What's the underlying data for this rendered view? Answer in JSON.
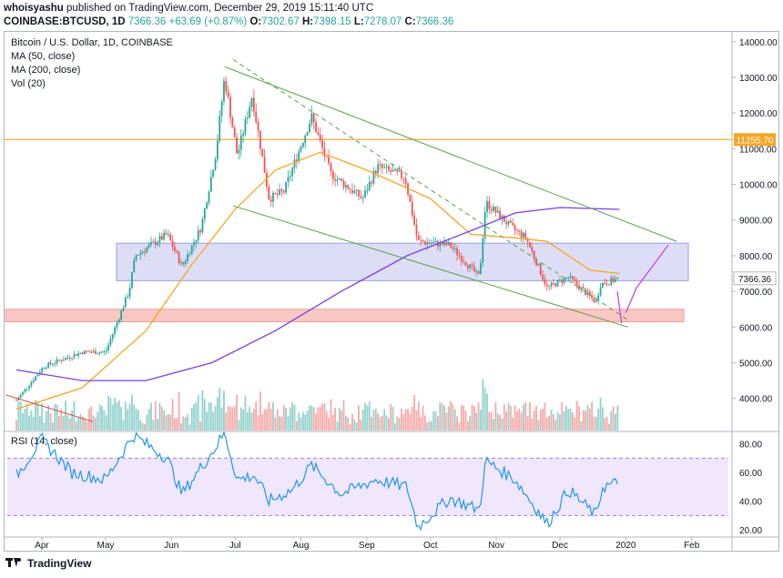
{
  "header": {
    "author": "whoisyashu",
    "published": "published on TradingView.com, December 29, 2019 15:11:40 UTC",
    "symbol": "COINBASE:BTCUSD, 1D",
    "last": "7366.36",
    "change": "+63.69 (+0.87%)",
    "o_label": "O:",
    "o": "7302.67",
    "h_label": "H:",
    "h": "7398.15",
    "l_label": "L:",
    "l": "7278.07",
    "c_label": "C:",
    "c": "7366.36"
  },
  "legend": {
    "title": "Bitcoin / U.S. Dollar, 1D, COINBASE",
    "ma50": "MA (50, close)",
    "ma200": "MA (200, close)",
    "vol": "Vol (20)"
  },
  "rsi_label": "RSI (14, close)",
  "footer": {
    "brand": "TradingView"
  },
  "colors": {
    "up": "#26a69a",
    "down": "#ef5350",
    "ma50": "#f5a623",
    "ma200": "#7b3fe4",
    "channel": "#5b9f4a",
    "rsi": "#2196f3",
    "rsi_band": "#e9ddfb",
    "resistance": "#f5a623",
    "zone_blue": "#c6c8ee",
    "zone_red": "#f8b9b5"
  },
  "chart_data": [
    {
      "type": "candlestick",
      "title": "Bitcoin / U.S. Dollar, 1D, COINBASE",
      "x_ticks": [
        "Apr",
        "May",
        "Jun",
        "Jul",
        "Aug",
        "Sep",
        "Oct",
        "Nov",
        "Dec",
        "2020",
        "Feb"
      ],
      "y_ticks": [
        "14000.00",
        "13000.00",
        "12000.00",
        "11000.00",
        "10000.00",
        "9000.00",
        "8000.00",
        "7000.00",
        "6000.00",
        "5000.00",
        "4000.00"
      ],
      "ylim": [
        3100,
        14300
      ],
      "price_label": "7366.36",
      "resistance_label": "11255.70",
      "resistance_level": 11255.7,
      "demand_zone": [
        7300,
        8350
      ],
      "support_zone": [
        6150,
        6500
      ],
      "price_path": [
        [
          "2019-03-20",
          3950
        ],
        [
          "2019-04-02",
          4900
        ],
        [
          "2019-04-20",
          5300
        ],
        [
          "2019-05-01",
          5300
        ],
        [
          "2019-05-12",
          7000
        ],
        [
          "2019-05-15",
          8000
        ],
        [
          "2019-05-30",
          8600
        ],
        [
          "2019-06-06",
          7700
        ],
        [
          "2019-06-15",
          8800
        ],
        [
          "2019-06-22",
          10900
        ],
        [
          "2019-06-26",
          13000
        ],
        [
          "2019-07-02",
          10800
        ],
        [
          "2019-07-09",
          12500
        ],
        [
          "2019-07-17",
          9600
        ],
        [
          "2019-07-24",
          9800
        ],
        [
          "2019-08-06",
          11900
        ],
        [
          "2019-08-15",
          10300
        ],
        [
          "2019-08-30",
          9600
        ],
        [
          "2019-09-06",
          10500
        ],
        [
          "2019-09-19",
          10200
        ],
        [
          "2019-09-25",
          8400
        ],
        [
          "2019-10-10",
          8300
        ],
        [
          "2019-10-24",
          7400
        ],
        [
          "2019-10-27",
          9500
        ],
        [
          "2019-11-08",
          8800
        ],
        [
          "2019-11-15",
          8500
        ],
        [
          "2019-11-25",
          7100
        ],
        [
          "2019-12-05",
          7400
        ],
        [
          "2019-12-18",
          6700
        ],
        [
          "2019-12-20",
          7200
        ],
        [
          "2019-12-29",
          7366
        ]
      ],
      "ma50": [
        [
          "2019-03-20",
          3700
        ],
        [
          "2019-04-20",
          4300
        ],
        [
          "2019-05-20",
          5900
        ],
        [
          "2019-06-10",
          7700
        ],
        [
          "2019-07-01",
          9300
        ],
        [
          "2019-07-20",
          10400
        ],
        [
          "2019-08-10",
          10900
        ],
        [
          "2019-09-01",
          10400
        ],
        [
          "2019-10-01",
          9600
        ],
        [
          "2019-10-20",
          8600
        ],
        [
          "2019-11-10",
          8500
        ],
        [
          "2019-11-25",
          8400
        ],
        [
          "2019-12-15",
          7600
        ],
        [
          "2019-12-29",
          7500
        ]
      ],
      "ma200": [
        [
          "2019-03-20",
          4800
        ],
        [
          "2019-04-20",
          4500
        ],
        [
          "2019-05-20",
          4500
        ],
        [
          "2019-06-20",
          5000
        ],
        [
          "2019-07-20",
          5900
        ],
        [
          "2019-08-20",
          7000
        ],
        [
          "2019-09-20",
          8000
        ],
        [
          "2019-10-20",
          8700
        ],
        [
          "2019-11-10",
          9200
        ],
        [
          "2019-12-01",
          9350
        ],
        [
          "2019-12-29",
          9300
        ]
      ]
    },
    {
      "type": "line",
      "title": "RSI (14, close)",
      "y_ticks": [
        "80.00",
        "60.00",
        "40.00",
        "20.00"
      ],
      "ylim": [
        15,
        88
      ],
      "band": [
        30,
        70
      ],
      "series": [
        [
          "2019-03-20",
          58
        ],
        [
          "2019-04-01",
          83
        ],
        [
          "2019-04-15",
          60
        ],
        [
          "2019-05-01",
          55
        ],
        [
          "2019-05-14",
          86
        ],
        [
          "2019-05-30",
          70
        ],
        [
          "2019-06-06",
          45
        ],
        [
          "2019-06-22",
          78
        ],
        [
          "2019-06-26",
          88
        ],
        [
          "2019-07-02",
          55
        ],
        [
          "2019-07-10",
          58
        ],
        [
          "2019-07-17",
          40
        ],
        [
          "2019-07-28",
          48
        ],
        [
          "2019-08-06",
          65
        ],
        [
          "2019-08-20",
          45
        ],
        [
          "2019-09-05",
          55
        ],
        [
          "2019-09-20",
          50
        ],
        [
          "2019-09-25",
          22
        ],
        [
          "2019-10-10",
          42
        ],
        [
          "2019-10-24",
          34
        ],
        [
          "2019-10-27",
          68
        ],
        [
          "2019-11-10",
          55
        ],
        [
          "2019-11-25",
          24
        ],
        [
          "2019-12-05",
          48
        ],
        [
          "2019-12-18",
          30
        ],
        [
          "2019-12-21",
          50
        ],
        [
          "2019-12-29",
          53
        ]
      ]
    }
  ]
}
